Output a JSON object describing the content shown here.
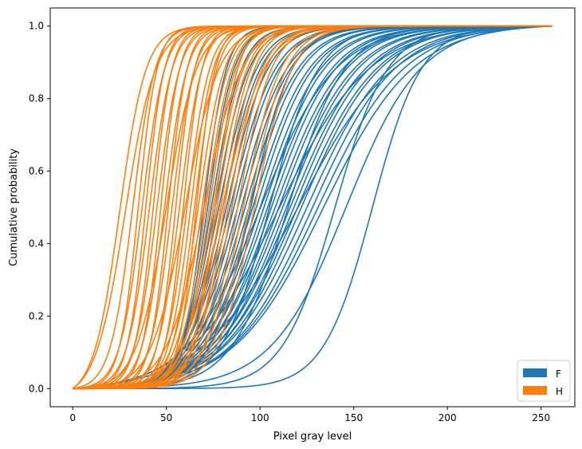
{
  "chart_data": {
    "type": "line",
    "title": "",
    "xlabel": "Pixel gray level",
    "ylabel": "Cumulative probability",
    "xlim": [
      -12,
      268
    ],
    "ylim": [
      -0.05,
      1.05
    ],
    "xticks": [
      0,
      50,
      100,
      150,
      200,
      250
    ],
    "yticks": [
      0.0,
      0.2,
      0.4,
      0.6,
      0.8,
      1.0
    ],
    "grid": false,
    "legend_position": "lower-right",
    "curve_model": "cumulative distribution per image, rising from 0 to 1 over gray levels 0-256",
    "series": [
      {
        "name": "F",
        "color": "#1f77b4",
        "curves": [
          {
            "mid": 70,
            "spread": 6
          },
          {
            "mid": 72,
            "spread": 7
          },
          {
            "mid": 74,
            "spread": 8
          },
          {
            "mid": 76,
            "spread": 9
          },
          {
            "mid": 78,
            "spread": 10
          },
          {
            "mid": 80,
            "spread": 10
          },
          {
            "mid": 82,
            "spread": 11
          },
          {
            "mid": 84,
            "spread": 12
          },
          {
            "mid": 86,
            "spread": 12
          },
          {
            "mid": 88,
            "spread": 13
          },
          {
            "mid": 90,
            "spread": 13
          },
          {
            "mid": 92,
            "spread": 14
          },
          {
            "mid": 94,
            "spread": 14
          },
          {
            "mid": 96,
            "spread": 15
          },
          {
            "mid": 98,
            "spread": 15
          },
          {
            "mid": 100,
            "spread": 16
          },
          {
            "mid": 102,
            "spread": 16
          },
          {
            "mid": 104,
            "spread": 17
          },
          {
            "mid": 106,
            "spread": 17
          },
          {
            "mid": 108,
            "spread": 18
          },
          {
            "mid": 110,
            "spread": 18
          },
          {
            "mid": 112,
            "spread": 19
          },
          {
            "mid": 114,
            "spread": 19
          },
          {
            "mid": 116,
            "spread": 20
          },
          {
            "mid": 118,
            "spread": 20
          },
          {
            "mid": 120,
            "spread": 21
          },
          {
            "mid": 122,
            "spread": 21
          },
          {
            "mid": 125,
            "spread": 22
          },
          {
            "mid": 128,
            "spread": 22
          },
          {
            "mid": 131,
            "spread": 23
          },
          {
            "mid": 134,
            "spread": 24
          },
          {
            "mid": 140,
            "spread": 14
          },
          {
            "mid": 146,
            "spread": 20
          },
          {
            "mid": 85,
            "spread": 9
          },
          {
            "mid": 95,
            "spread": 11
          },
          {
            "mid": 105,
            "spread": 13
          },
          {
            "mid": 115,
            "spread": 15
          },
          {
            "mid": 100,
            "spread": 20
          },
          {
            "mid": 110,
            "spread": 24
          },
          {
            "mid": 120,
            "spread": 26
          },
          {
            "mid": 160,
            "spread": 13
          }
        ]
      },
      {
        "name": "H",
        "color": "#ff7f0e",
        "curves": [
          {
            "mid": 25,
            "spread": 7
          },
          {
            "mid": 28,
            "spread": 8
          },
          {
            "mid": 32,
            "spread": 6
          },
          {
            "mid": 35,
            "spread": 5
          },
          {
            "mid": 37,
            "spread": 6
          },
          {
            "mid": 39,
            "spread": 5
          },
          {
            "mid": 41,
            "spread": 6
          },
          {
            "mid": 43,
            "spread": 5
          },
          {
            "mid": 45,
            "spread": 6
          },
          {
            "mid": 47,
            "spread": 5
          },
          {
            "mid": 49,
            "spread": 6
          },
          {
            "mid": 51,
            "spread": 5
          },
          {
            "mid": 53,
            "spread": 6
          },
          {
            "mid": 55,
            "spread": 5
          },
          {
            "mid": 57,
            "spread": 6
          },
          {
            "mid": 59,
            "spread": 5
          },
          {
            "mid": 61,
            "spread": 6
          },
          {
            "mid": 63,
            "spread": 6
          },
          {
            "mid": 65,
            "spread": 6
          },
          {
            "mid": 67,
            "spread": 7
          },
          {
            "mid": 69,
            "spread": 7
          },
          {
            "mid": 71,
            "spread": 7
          },
          {
            "mid": 73,
            "spread": 7
          },
          {
            "mid": 75,
            "spread": 8
          },
          {
            "mid": 77,
            "spread": 8
          },
          {
            "mid": 79,
            "spread": 8
          },
          {
            "mid": 81,
            "spread": 8
          },
          {
            "mid": 83,
            "spread": 9
          },
          {
            "mid": 85,
            "spread": 9
          },
          {
            "mid": 88,
            "spread": 9
          },
          {
            "mid": 91,
            "spread": 10
          },
          {
            "mid": 94,
            "spread": 10
          },
          {
            "mid": 97,
            "spread": 10
          },
          {
            "mid": 60,
            "spread": 9
          },
          {
            "mid": 70,
            "spread": 10
          },
          {
            "mid": 80,
            "spread": 11
          },
          {
            "mid": 50,
            "spread": 8
          },
          {
            "mid": 66,
            "spread": 5
          },
          {
            "mid": 76,
            "spread": 6
          }
        ]
      }
    ]
  }
}
